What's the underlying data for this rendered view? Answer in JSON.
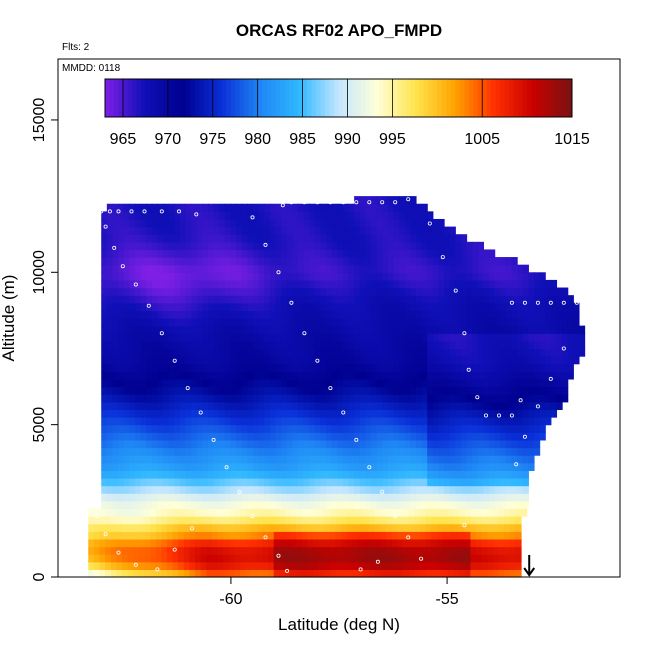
{
  "chart_data": {
    "type": "heatmap",
    "title": "ORCAS RF02 APO_FMPD",
    "flights_note": "Flts: 2",
    "date_note": "MMDD: 0118",
    "xlabel": "Latitude (deg N)",
    "ylabel": "Altitude (m)",
    "xlim": [
      -64,
      -51
    ],
    "ylim": [
      0,
      17000
    ],
    "x_ticks": [
      -60,
      -55
    ],
    "x_tick_labels": [
      "-60",
      "-55"
    ],
    "y_ticks": [
      0,
      5000,
      10000,
      15000
    ],
    "y_tick_labels": [
      "0",
      "5000",
      "10000",
      "15000"
    ],
    "colorbar": {
      "min": 963,
      "max": 1015,
      "tick_values": [
        965,
        970,
        975,
        980,
        985,
        990,
        995,
        1005,
        1015
      ],
      "tick_labels": [
        "965",
        "970",
        "975",
        "980",
        "985",
        "990",
        "995",
        "1005",
        "1015"
      ],
      "colors": [
        "#7f1fe6",
        "#1010b8",
        "#00008f",
        "#0a2fd8",
        "#1f87f5",
        "#30b8ff",
        "#c4e6ff",
        "#ffffd8",
        "#ffe34a",
        "#ffa200",
        "#ff3000",
        "#c80000",
        "#7a1212"
      ]
    },
    "top_boundary": [
      {
        "lat": -63.0,
        "alt": 12000
      },
      {
        "lat": -62.8,
        "alt": 12200
      },
      {
        "lat": -58.0,
        "alt": 12300
      },
      {
        "lat": -55.8,
        "alt": 12500
      },
      {
        "lat": -55.4,
        "alt": 12000
      },
      {
        "lat": -55.0,
        "alt": 11600
      },
      {
        "lat": -54.4,
        "alt": 11000
      },
      {
        "lat": -53.8,
        "alt": 10600
      },
      {
        "lat": -53.3,
        "alt": 10300
      },
      {
        "lat": -52.8,
        "alt": 9900
      },
      {
        "lat": -52.4,
        "alt": 9600
      },
      {
        "lat": -52.0,
        "alt": 9000
      }
    ],
    "bottom_boundary": [
      {
        "lat": -63.3,
        "alt": 2200
      },
      {
        "lat": -63.0,
        "alt": 2200
      },
      {
        "lat": -53.2,
        "alt": 2000
      },
      {
        "lat": -53.4,
        "alt": 0
      },
      {
        "lat": -63.3,
        "alt": 0
      }
    ],
    "right_boundary": [
      {
        "lat": -52.0,
        "alt": 9000
      },
      {
        "lat": -51.9,
        "alt": 7500
      },
      {
        "lat": -52.2,
        "alt": 6500
      },
      {
        "lat": -52.4,
        "alt": 5600
      },
      {
        "lat": -52.7,
        "alt": 5000
      },
      {
        "lat": -53.0,
        "alt": 4000
      },
      {
        "lat": -53.2,
        "alt": 3000
      },
      {
        "lat": -53.2,
        "alt": 2000
      }
    ],
    "field_profile": [
      {
        "alt": 0,
        "value": 1004
      },
      {
        "alt": 500,
        "value": 1011
      },
      {
        "alt": 1000,
        "value": 1010
      },
      {
        "alt": 1500,
        "value": 1002
      },
      {
        "alt": 2000,
        "value": 995
      },
      {
        "alt": 2500,
        "value": 992
      },
      {
        "alt": 3000,
        "value": 987
      },
      {
        "alt": 3500,
        "value": 983
      },
      {
        "alt": 4000,
        "value": 981
      },
      {
        "alt": 4500,
        "value": 979
      },
      {
        "alt": 5000,
        "value": 977
      },
      {
        "alt": 6000,
        "value": 973
      },
      {
        "alt": 7000,
        "value": 970
      },
      {
        "alt": 8000,
        "value": 969
      },
      {
        "alt": 9000,
        "value": 968
      },
      {
        "alt": 10000,
        "value": 966
      },
      {
        "alt": 11000,
        "value": 967
      },
      {
        "alt": 12500,
        "value": 967
      }
    ],
    "south_fresh_influence": {
      "lat_start": -63.2,
      "lat_end": -60.5,
      "alt_max": 2500,
      "delta": -12
    },
    "violet_core": {
      "lat": -61.2,
      "alt": 9700,
      "lat_width": 2.0,
      "alt_width": 1200,
      "delta": -3
    },
    "flight_track": [
      {
        "lat": -63.0,
        "alt": 12000
      },
      {
        "lat": -62.8,
        "alt": 12000
      },
      {
        "lat": -62.6,
        "alt": 12000
      },
      {
        "lat": -62.3,
        "alt": 12000
      },
      {
        "lat": -62.0,
        "alt": 12000
      },
      {
        "lat": -61.6,
        "alt": 12000
      },
      {
        "lat": -61.2,
        "alt": 12000
      },
      {
        "lat": -60.8,
        "alt": 11900
      },
      {
        "lat": -62.9,
        "alt": 11500
      },
      {
        "lat": -62.7,
        "alt": 10800
      },
      {
        "lat": -62.5,
        "alt": 10200
      },
      {
        "lat": -62.2,
        "alt": 9600
      },
      {
        "lat": -61.9,
        "alt": 8900
      },
      {
        "lat": -61.6,
        "alt": 8000
      },
      {
        "lat": -61.3,
        "alt": 7100
      },
      {
        "lat": -61.0,
        "alt": 6200
      },
      {
        "lat": -60.7,
        "alt": 5400
      },
      {
        "lat": -60.4,
        "alt": 4500
      },
      {
        "lat": -60.1,
        "alt": 3600
      },
      {
        "lat": -59.8,
        "alt": 2800
      },
      {
        "lat": -59.5,
        "alt": 2000
      },
      {
        "lat": -59.2,
        "alt": 1300
      },
      {
        "lat": -58.9,
        "alt": 700
      },
      {
        "lat": -58.7,
        "alt": 200
      },
      {
        "lat": -58.8,
        "alt": 12200
      },
      {
        "lat": -58.6,
        "alt": 12300
      },
      {
        "lat": -58.3,
        "alt": 12300
      },
      {
        "lat": -58.0,
        "alt": 12300
      },
      {
        "lat": -57.7,
        "alt": 12300
      },
      {
        "lat": -57.4,
        "alt": 12300
      },
      {
        "lat": -57.1,
        "alt": 12300
      },
      {
        "lat": -56.8,
        "alt": 12300
      },
      {
        "lat": -56.5,
        "alt": 12300
      },
      {
        "lat": -56.2,
        "alt": 12300
      },
      {
        "lat": -55.9,
        "alt": 12400
      },
      {
        "lat": -59.5,
        "alt": 11800
      },
      {
        "lat": -59.2,
        "alt": 10900
      },
      {
        "lat": -58.9,
        "alt": 10000
      },
      {
        "lat": -58.6,
        "alt": 9000
      },
      {
        "lat": -58.3,
        "alt": 8000
      },
      {
        "lat": -58.0,
        "alt": 7100
      },
      {
        "lat": -57.7,
        "alt": 6200
      },
      {
        "lat": -57.4,
        "alt": 5400
      },
      {
        "lat": -57.1,
        "alt": 4500
      },
      {
        "lat": -56.8,
        "alt": 3600
      },
      {
        "lat": -56.5,
        "alt": 2800
      },
      {
        "lat": -56.2,
        "alt": 2000
      },
      {
        "lat": -55.9,
        "alt": 1300
      },
      {
        "lat": -55.6,
        "alt": 600
      },
      {
        "lat": -55.4,
        "alt": 11600
      },
      {
        "lat": -55.1,
        "alt": 10500
      },
      {
        "lat": -54.8,
        "alt": 9400
      },
      {
        "lat": -54.6,
        "alt": 8000
      },
      {
        "lat": -54.5,
        "alt": 6800
      },
      {
        "lat": -54.3,
        "alt": 5900
      },
      {
        "lat": -54.1,
        "alt": 5300
      },
      {
        "lat": -53.8,
        "alt": 5300
      },
      {
        "lat": -53.5,
        "alt": 5300
      },
      {
        "lat": -53.3,
        "alt": 5800
      },
      {
        "lat": -53.5,
        "alt": 9000
      },
      {
        "lat": -53.2,
        "alt": 9000
      },
      {
        "lat": -52.9,
        "alt": 9000
      },
      {
        "lat": -52.6,
        "alt": 9000
      },
      {
        "lat": -52.3,
        "alt": 9000
      },
      {
        "lat": -52.0,
        "alt": 9000
      },
      {
        "lat": -52.3,
        "alt": 7500
      },
      {
        "lat": -52.6,
        "alt": 6500
      },
      {
        "lat": -52.9,
        "alt": 5600
      },
      {
        "lat": -53.2,
        "alt": 4600
      },
      {
        "lat": -53.4,
        "alt": 3700
      },
      {
        "lat": -63.1,
        "alt": 2000
      },
      {
        "lat": -62.9,
        "alt": 1400
      },
      {
        "lat": -62.6,
        "alt": 800
      },
      {
        "lat": -62.2,
        "alt": 400
      },
      {
        "lat": -61.7,
        "alt": 250
      },
      {
        "lat": -61.3,
        "alt": 900
      },
      {
        "lat": -60.9,
        "alt": 1600
      },
      {
        "lat": -57.0,
        "alt": 250
      },
      {
        "lat": -56.6,
        "alt": 500
      },
      {
        "lat": -54.6,
        "alt": 1700
      }
    ],
    "arrow_marker_lat": -53.1
  }
}
